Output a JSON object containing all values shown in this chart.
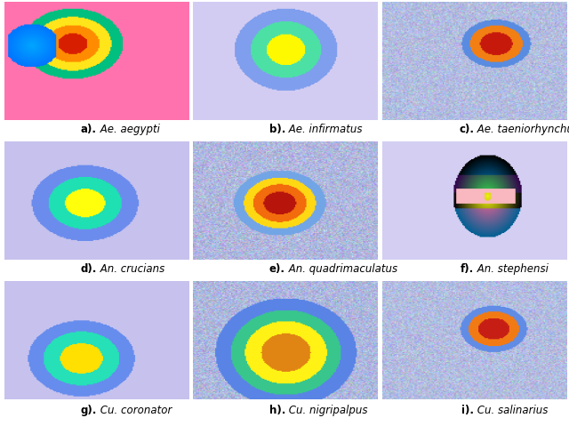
{
  "labels": [
    [
      "a).",
      " Ae. aegypti"
    ],
    [
      "b).",
      " Ae. infirmatus"
    ],
    [
      "c).",
      " Ae. taeniorhynchus"
    ],
    [
      "d).",
      " An. crucians"
    ],
    [
      "e).",
      " An. quadrimaculatus"
    ],
    [
      "f).",
      " An. stephensi"
    ],
    [
      "g).",
      " Cu. coronator"
    ],
    [
      "h).",
      " Cu. nigripalpus"
    ],
    [
      "i).",
      " Cu. salinarius"
    ]
  ],
  "bg_color": "#ffffff",
  "figsize": [
    6.4,
    4.79
  ],
  "dpi": 100,
  "label_fontsize": 8.5
}
